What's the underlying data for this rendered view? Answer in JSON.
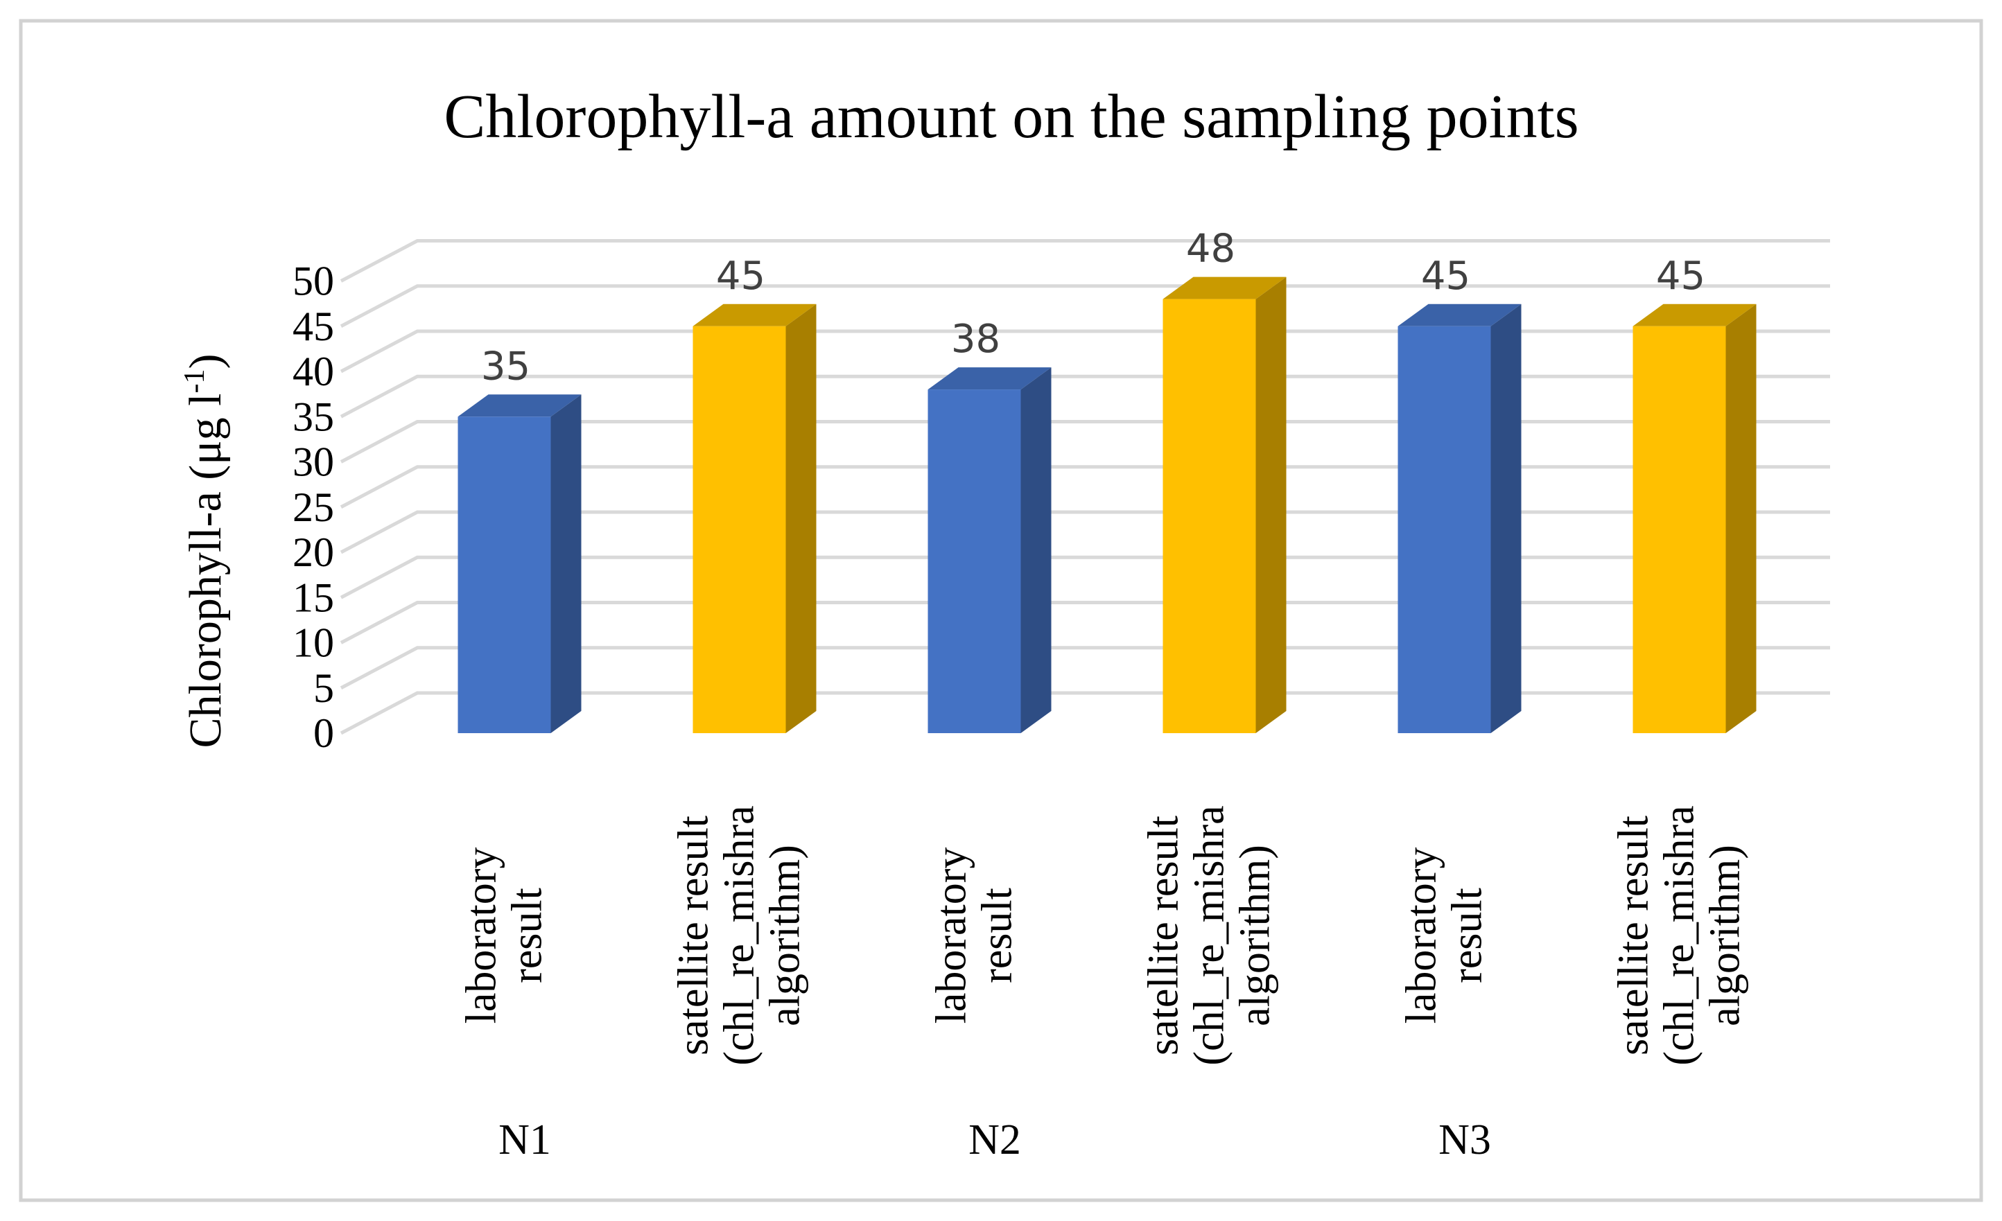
{
  "chart_data": {
    "type": "bar",
    "title": "Chlorophyll-a  amount on the sampling points",
    "ylabel": "Chlorophyll-a (μg l",
    "ylabel_sup": "-1",
    "ylabel_close": ")",
    "xlabel": "",
    "ylim": [
      0,
      50
    ],
    "ytick_step": 5,
    "yticks": [
      "0",
      "5",
      "10",
      "15",
      "20",
      "25",
      "30",
      "35",
      "40",
      "45",
      "50"
    ],
    "grid": true,
    "legend": "none",
    "categories": [
      {
        "group": "N1",
        "label": [
          "laboratory",
          "result"
        ],
        "value": 35,
        "series": "laboratory"
      },
      {
        "group": "N1",
        "label": [
          "satellite result",
          "(chl_re_mishra",
          "algorithm)"
        ],
        "value": 45,
        "series": "satellite"
      },
      {
        "group": "N2",
        "label": [
          "laboratory",
          "result"
        ],
        "value": 38,
        "series": "laboratory"
      },
      {
        "group": "N2",
        "label": [
          "satellite result",
          "(chl_re_mishra",
          "algorithm)"
        ],
        "value": 48,
        "series": "satellite"
      },
      {
        "group": "N3",
        "label": [
          "laboratory",
          "result"
        ],
        "value": 45,
        "series": "laboratory"
      },
      {
        "group": "N3",
        "label": [
          "satellite result",
          "(chl_re_mishra",
          "algorithm)"
        ],
        "value": 45,
        "series": "satellite"
      }
    ],
    "groups": [
      "N1",
      "N2",
      "N3"
    ],
    "colors": {
      "laboratory": {
        "front": "#4472c4",
        "side": "#2e4d84",
        "top": "#3a62a8"
      },
      "satellite": {
        "front": "#ffc000",
        "side": "#a87f00",
        "top": "#c99a00"
      }
    }
  }
}
